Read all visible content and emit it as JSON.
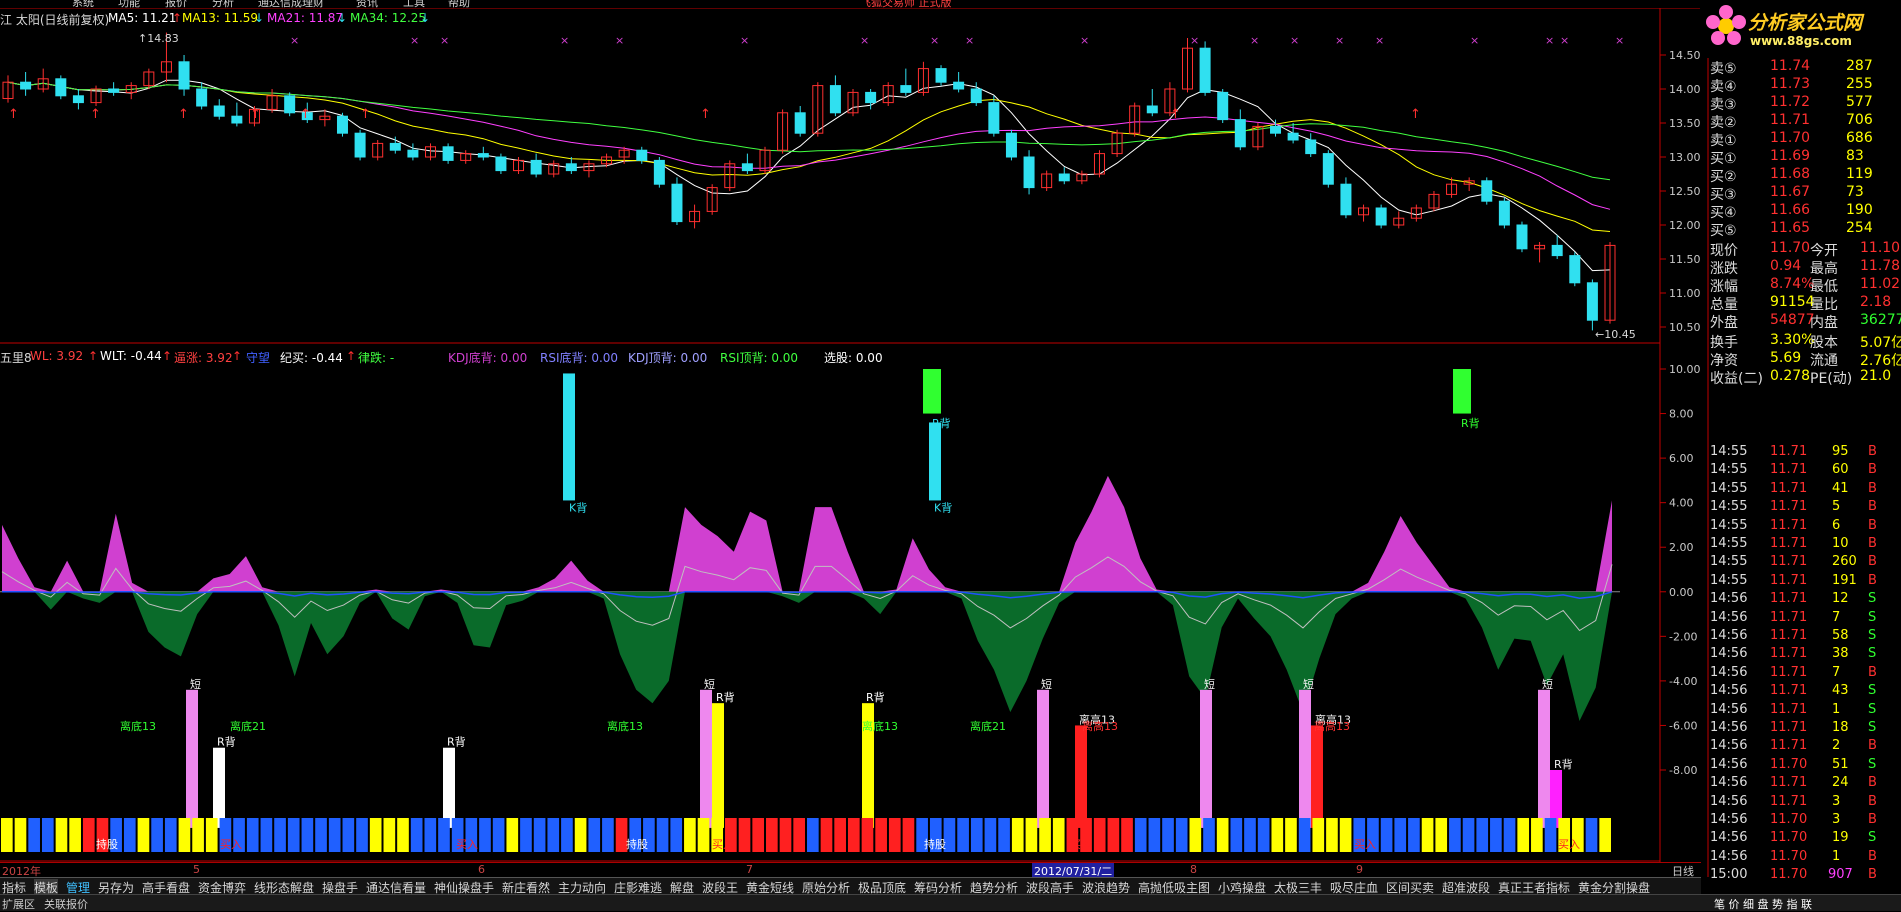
{
  "menu": [
    "系统",
    "功能",
    "报价",
    "分析",
    "通达信成理财",
    "资讯",
    "工具",
    "帮助"
  ],
  "app_title": "飞狐交易师 正式版",
  "brand": {
    "name": "分析家公式网",
    "url": "www.88gs.com"
  },
  "main_legend": {
    "title": "江 太阳(日线前复权)",
    "ma5": "MA5: 11.21",
    "ma13": "MA13: 11.59",
    "ma21": "MA21: 11.87",
    "ma34": "MA34: 12.25"
  },
  "high_label": "14.83",
  "low_label": "10.45",
  "ind_legend": {
    "title": "五里8",
    "wl": "WL: 3.92",
    "wlt": "WLT: -0.44",
    "zhang": "逼涨: 3.92",
    "shouwang": "守望",
    "jimai": "纪买: -0.44",
    "lvdie": "律跌: -",
    "kdjdi": "KDJ底背: 0.00",
    "rsidi": "RSI底背: 0.00",
    "kdjding": "KDJ顶背: 0.00",
    "rsiding": "RSI顶背: 0.00",
    "xuandian": "选股: 0.00"
  },
  "colors": {
    "up": "#ff3030",
    "down": "#30e0f0",
    "ma5": "#ffffff",
    "ma13": "#ffff00",
    "ma21": "#ff40ff",
    "ma34": "#40ff40",
    "axis": "#c00000",
    "pink": "#d040d0",
    "green": "#0a6b2a"
  },
  "price_axis": [
    "14.50",
    "14.00",
    "13.50",
    "13.00",
    "12.50",
    "12.00",
    "11.50",
    "11.00",
    "10.50"
  ],
  "ind_axis": [
    "10.00",
    "8.00",
    "6.00",
    "4.00",
    "2.00",
    "0.00",
    "-2.00",
    "-4.00",
    "-6.00",
    "-8.00"
  ],
  "chart_labels": {
    "kbei": "K背",
    "rbei": "R背",
    "duan": "短",
    "lidi": "离底13",
    "lidi21": "离底21",
    "ligao": "离高13",
    "chigu": "持股",
    "maimai": "买入"
  },
  "chart_data": {
    "type": "candlestick",
    "ohlc": [
      [
        13.86,
        14.2,
        13.8,
        14.1
      ],
      [
        14.1,
        14.25,
        13.9,
        14.0
      ],
      [
        14.0,
        14.3,
        13.95,
        14.15
      ],
      [
        14.15,
        14.2,
        13.85,
        13.9
      ],
      [
        13.9,
        14.0,
        13.7,
        13.8
      ],
      [
        13.8,
        14.05,
        13.75,
        14.0
      ],
      [
        14.0,
        14.1,
        13.9,
        13.95
      ],
      [
        13.95,
        14.1,
        13.85,
        14.05
      ],
      [
        14.05,
        14.3,
        14.0,
        14.25
      ],
      [
        14.25,
        14.83,
        14.1,
        14.4
      ],
      [
        14.4,
        14.5,
        13.9,
        14.0
      ],
      [
        14.0,
        14.1,
        13.7,
        13.75
      ],
      [
        13.75,
        13.85,
        13.55,
        13.6
      ],
      [
        13.6,
        13.8,
        13.45,
        13.5
      ],
      [
        13.5,
        13.75,
        13.45,
        13.7
      ],
      [
        13.7,
        14.0,
        13.65,
        13.9
      ],
      [
        13.9,
        13.95,
        13.6,
        13.65
      ],
      [
        13.65,
        13.8,
        13.5,
        13.55
      ],
      [
        13.55,
        13.7,
        13.45,
        13.6
      ],
      [
        13.6,
        13.65,
        13.3,
        13.35
      ],
      [
        13.35,
        13.4,
        12.95,
        13.0
      ],
      [
        13.0,
        13.25,
        12.95,
        13.2
      ],
      [
        13.2,
        13.3,
        13.05,
        13.1
      ],
      [
        13.1,
        13.2,
        12.95,
        13.0
      ],
      [
        13.0,
        13.2,
        12.95,
        13.15
      ],
      [
        13.15,
        13.2,
        12.9,
        12.95
      ],
      [
        12.95,
        13.1,
        12.9,
        13.05
      ],
      [
        13.05,
        13.15,
        12.95,
        13.0
      ],
      [
        13.0,
        13.05,
        12.75,
        12.8
      ],
      [
        12.8,
        13.0,
        12.75,
        12.95
      ],
      [
        12.95,
        13.05,
        12.7,
        12.75
      ],
      [
        12.75,
        12.95,
        12.7,
        12.9
      ],
      [
        12.9,
        13.0,
        12.75,
        12.8
      ],
      [
        12.8,
        12.95,
        12.7,
        12.9
      ],
      [
        12.9,
        13.05,
        12.85,
        13.0
      ],
      [
        13.0,
        13.15,
        12.9,
        13.1
      ],
      [
        13.1,
        13.15,
        12.9,
        12.95
      ],
      [
        12.95,
        13.0,
        12.55,
        12.6
      ],
      [
        12.6,
        12.7,
        12.0,
        12.05
      ],
      [
        12.05,
        12.3,
        11.95,
        12.2
      ],
      [
        12.2,
        12.6,
        12.15,
        12.55
      ],
      [
        12.55,
        12.95,
        12.5,
        12.9
      ],
      [
        12.9,
        13.05,
        12.75,
        12.8
      ],
      [
        12.8,
        13.15,
        12.75,
        13.1
      ],
      [
        13.1,
        13.7,
        13.05,
        13.65
      ],
      [
        13.65,
        13.75,
        13.3,
        13.35
      ],
      [
        13.35,
        14.1,
        13.3,
        14.05
      ],
      [
        14.05,
        14.2,
        13.6,
        13.65
      ],
      [
        13.65,
        14.0,
        13.6,
        13.95
      ],
      [
        13.95,
        14.0,
        13.7,
        13.8
      ],
      [
        13.8,
        14.1,
        13.75,
        14.05
      ],
      [
        14.05,
        14.3,
        13.9,
        13.95
      ],
      [
        13.95,
        14.4,
        13.9,
        14.3
      ],
      [
        14.3,
        14.35,
        14.05,
        14.1
      ],
      [
        14.1,
        14.25,
        13.95,
        14.0
      ],
      [
        14.0,
        14.1,
        13.75,
        13.8
      ],
      [
        13.8,
        13.9,
        13.3,
        13.35
      ],
      [
        13.35,
        13.4,
        12.95,
        13.0
      ],
      [
        13.0,
        13.1,
        12.45,
        12.55
      ],
      [
        12.55,
        12.8,
        12.5,
        12.75
      ],
      [
        12.75,
        12.85,
        12.6,
        12.65
      ],
      [
        12.65,
        12.8,
        12.6,
        12.75
      ],
      [
        12.75,
        13.1,
        12.7,
        13.05
      ],
      [
        13.05,
        13.4,
        13.0,
        13.35
      ],
      [
        13.35,
        13.8,
        13.3,
        13.75
      ],
      [
        13.75,
        14.0,
        13.6,
        13.65
      ],
      [
        13.65,
        14.1,
        13.6,
        14.0
      ],
      [
        14.0,
        14.75,
        13.95,
        14.6
      ],
      [
        14.6,
        14.7,
        13.9,
        13.95
      ],
      [
        13.95,
        14.0,
        13.5,
        13.55
      ],
      [
        13.55,
        13.7,
        13.1,
        13.15
      ],
      [
        13.15,
        13.5,
        13.1,
        13.45
      ],
      [
        13.45,
        13.55,
        13.3,
        13.35
      ],
      [
        13.35,
        13.5,
        13.2,
        13.25
      ],
      [
        13.25,
        13.35,
        13.0,
        13.05
      ],
      [
        13.05,
        13.1,
        12.55,
        12.6
      ],
      [
        12.6,
        12.7,
        12.1,
        12.15
      ],
      [
        12.15,
        12.3,
        12.05,
        12.25
      ],
      [
        12.25,
        12.3,
        11.95,
        12.0
      ],
      [
        12.0,
        12.2,
        11.95,
        12.1
      ],
      [
        12.1,
        12.3,
        12.05,
        12.25
      ],
      [
        12.25,
        12.5,
        12.2,
        12.45
      ],
      [
        12.45,
        12.7,
        12.4,
        12.6
      ],
      [
        12.6,
        12.7,
        12.5,
        12.65
      ],
      [
        12.65,
        12.7,
        12.3,
        12.35
      ],
      [
        12.35,
        12.4,
        11.95,
        12.0
      ],
      [
        12.0,
        12.05,
        11.6,
        11.65
      ],
      [
        11.65,
        11.75,
        11.45,
        11.7
      ],
      [
        11.7,
        11.85,
        11.5,
        11.55
      ],
      [
        11.55,
        11.6,
        11.1,
        11.15
      ],
      [
        11.15,
        11.2,
        10.45,
        10.6
      ],
      [
        10.6,
        11.75,
        10.55,
        11.7
      ]
    ]
  }
}
